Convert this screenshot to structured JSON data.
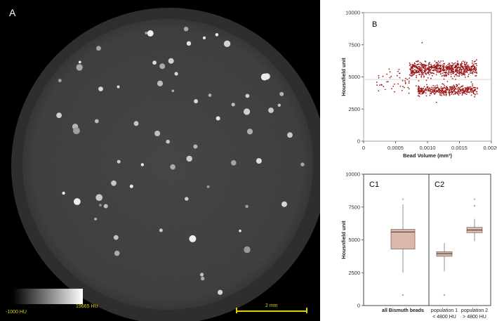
{
  "panel_a": {
    "label": "A",
    "colorbar": {
      "min_label": "-1000 HU",
      "max_label": "19665 HU"
    },
    "scalebar_label": "2 mm",
    "bead_count_visible": 70
  },
  "chart_data": [
    {
      "panel": "B",
      "type": "scatter",
      "label": "B",
      "xlabel": "Bead Volume (mm³)",
      "ylabel": "Housnfield unit",
      "xlim": [
        0,
        0.002
      ],
      "ylim": [
        0,
        10000
      ],
      "x_ticks": [
        "0",
        "0.0005",
        "0.0010",
        "0.0015",
        "0.0020"
      ],
      "y_ticks": [
        "0",
        "2500",
        "5000",
        "7500",
        "10000"
      ],
      "threshold_line": 4800,
      "grid": false,
      "series": [
        {
          "cluster": "upper",
          "x_range": [
            0.00072,
            0.00178
          ],
          "y_center": 5600,
          "y_spread": 600,
          "n": 650
        },
        {
          "cluster": "lower",
          "x_range": [
            0.00085,
            0.00178
          ],
          "y_center": 3950,
          "y_spread": 400,
          "n": 380
        },
        {
          "cluster": "sparse_small",
          "x_range": [
            0.0002,
            0.00072
          ],
          "y_center": 4700,
          "y_spread": 1100,
          "n": 45
        },
        {
          "cluster": "outliers",
          "x_range": [
            0.0008,
            0.00178
          ],
          "y_center": 5200,
          "y_spread": 2600,
          "n": 25
        }
      ]
    },
    {
      "panel": "C",
      "type": "box",
      "ylabel": "Housnfield unit",
      "ylim": [
        0,
        10000
      ],
      "y_ticks": [
        "0",
        "2500",
        "5000",
        "7500",
        "10000"
      ],
      "subpanels": [
        {
          "label": "C1"
        },
        {
          "label": "C2"
        }
      ],
      "boxes": [
        {
          "label": "all Bismuth beads",
          "whisker_low": 2500,
          "q1": 4300,
          "median": 5600,
          "q3": 5800,
          "whisker_high": 7700,
          "outliers": [
            800,
            8100
          ]
        },
        {
          "label": "population 1\n< 4800 HU",
          "whisker_low": 2600,
          "q1": 3750,
          "median": 3950,
          "q3": 4100,
          "whisker_high": 4750,
          "outliers": [
            800
          ]
        },
        {
          "label": "population 2\n> 4800 HU",
          "whisker_low": 4900,
          "q1": 5550,
          "median": 5750,
          "q3": 5950,
          "whisker_high": 6600,
          "outliers": [
            8100,
            7600
          ]
        }
      ],
      "box_color": "#dcb8ab"
    }
  ]
}
